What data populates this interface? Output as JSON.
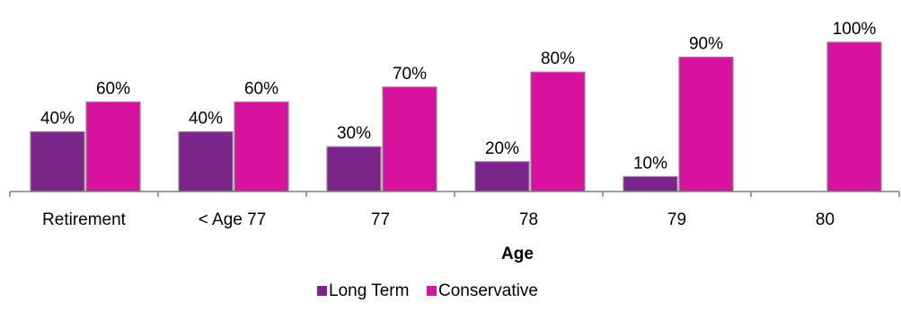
{
  "chart_data": {
    "type": "bar",
    "categories": [
      "Retirement",
      "< Age 77",
      "77",
      "78",
      "79",
      "80"
    ],
    "series": [
      {
        "name": "Long Term",
        "values": [
          40,
          40,
          30,
          20,
          10,
          0
        ],
        "labels": [
          "40%",
          "40%",
          "30%",
          "20%",
          "10%",
          ""
        ],
        "color": "#7b2489"
      },
      {
        "name": "Conservative",
        "values": [
          60,
          60,
          70,
          80,
          90,
          100
        ],
        "labels": [
          "60%",
          "60%",
          "70%",
          "80%",
          "90%",
          "100%"
        ],
        "color": "#d9119f"
      }
    ],
    "xlabel": "Age",
    "ylabel": "",
    "ylim": [
      0,
      100
    ],
    "grid": false,
    "legend_position": "bottom",
    "axis_color": "#808080"
  }
}
